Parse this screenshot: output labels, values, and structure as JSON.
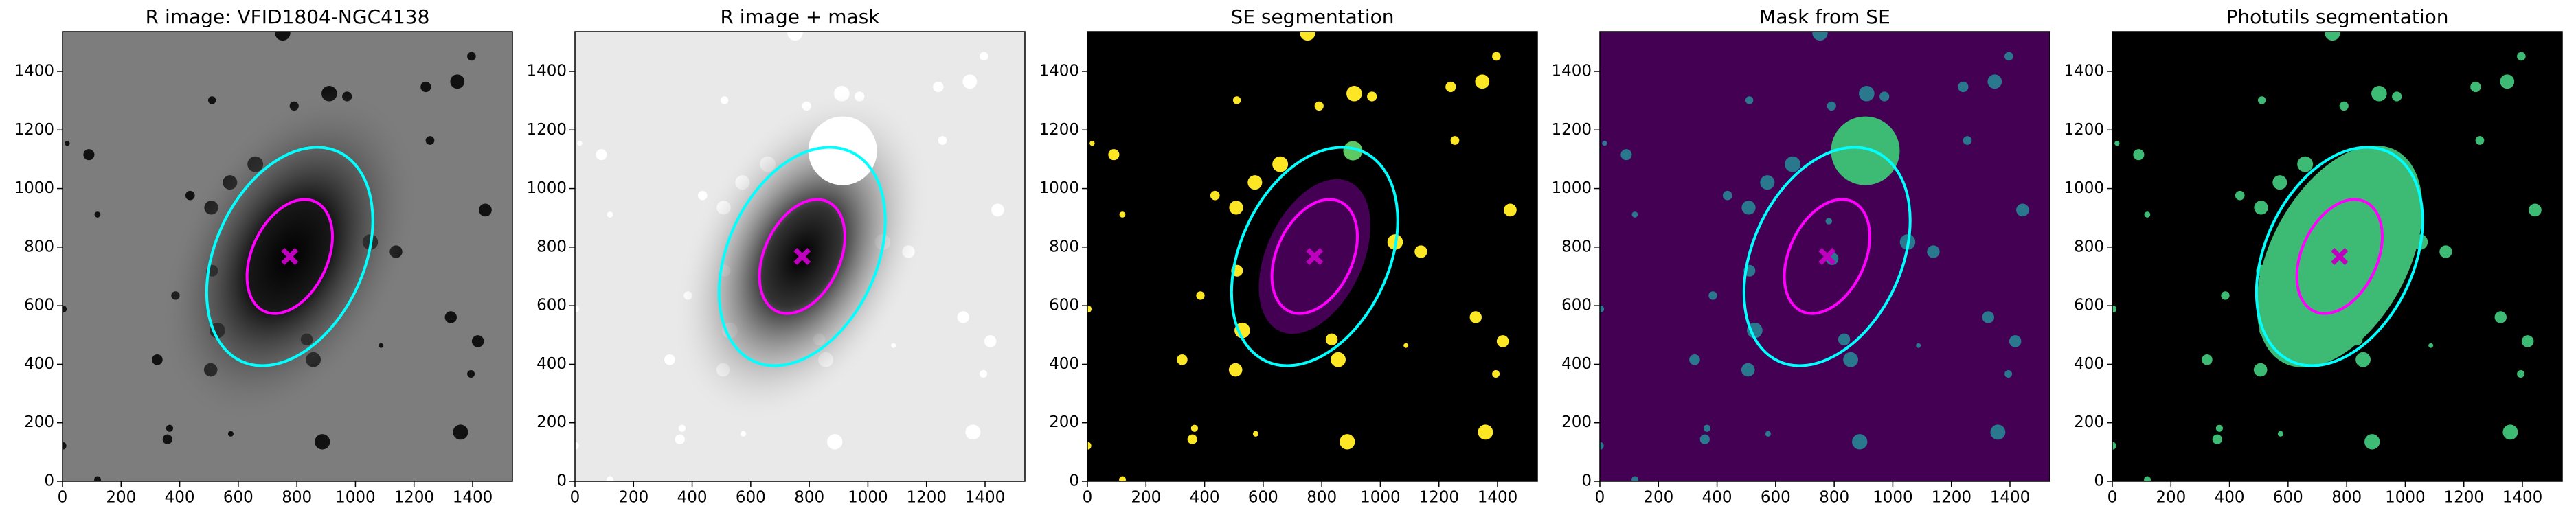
{
  "chart_data": [
    {
      "type": "image",
      "title": "R image: VFID1804-NGC4138",
      "xlim": [
        0,
        1536
      ],
      "ylim": [
        0,
        1536
      ],
      "xticks": [
        0,
        200,
        400,
        600,
        800,
        1000,
        1200,
        1400
      ],
      "yticks": [
        0,
        200,
        400,
        600,
        800,
        1000,
        1200,
        1400
      ]
    },
    {
      "type": "image",
      "title": "R image + mask",
      "xlim": [
        0,
        1536
      ],
      "ylim": [
        0,
        1536
      ],
      "xticks": [
        0,
        200,
        400,
        600,
        800,
        1000,
        1200,
        1400
      ],
      "yticks": [
        0,
        200,
        400,
        600,
        800,
        1000,
        1200,
        1400
      ]
    },
    {
      "type": "image",
      "title": "SE segmentation",
      "xlim": [
        0,
        1536
      ],
      "ylim": [
        0,
        1536
      ],
      "xticks": [
        0,
        200,
        400,
        600,
        800,
        1000,
        1200,
        1400
      ],
      "yticks": [
        0,
        200,
        400,
        600,
        800,
        1000,
        1200,
        1400
      ]
    },
    {
      "type": "image",
      "title": "Mask from SE",
      "xlim": [
        0,
        1536
      ],
      "ylim": [
        0,
        1536
      ],
      "xticks": [
        0,
        200,
        400,
        600,
        800,
        1000,
        1200,
        1400
      ],
      "yticks": [
        0,
        200,
        400,
        600,
        800,
        1000,
        1200,
        1400
      ]
    },
    {
      "type": "image",
      "title": "Photutils segmentation",
      "xlim": [
        0,
        1536
      ],
      "ylim": [
        0,
        1536
      ],
      "xticks": [
        0,
        200,
        400,
        600,
        800,
        1000,
        1200,
        1400
      ],
      "yticks": [
        0,
        200,
        400,
        600,
        800,
        1000,
        1200,
        1400
      ]
    }
  ]
}
